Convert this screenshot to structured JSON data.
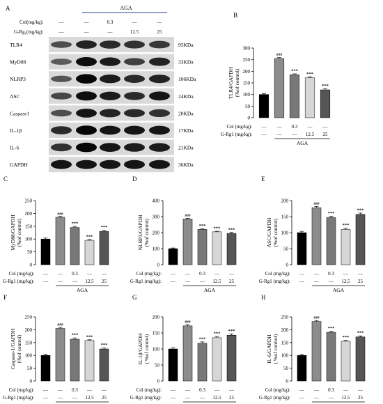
{
  "panel_a": {
    "label": "A",
    "group_label": "AGA",
    "row_labels": [
      "Col(mg/kg):",
      "G-Rg₁(mg/kg):"
    ],
    "col_row": [
      "—",
      "—",
      "0.3",
      "—",
      "—"
    ],
    "rg_row": [
      "—",
      "—",
      "—",
      "12.5",
      "25"
    ],
    "blots": [
      {
        "name": "TLR4",
        "kda": "95KDa"
      },
      {
        "name": "MyD88",
        "kda": "33KDa"
      },
      {
        "name": "NLRP3",
        "kda": "106KDa"
      },
      {
        "name": "ASC",
        "kda": "24KDa"
      },
      {
        "name": "Caspase1",
        "kda": "20KDa"
      },
      {
        "name": "IL-1β",
        "kda": "17KDa"
      },
      {
        "name": "IL-6",
        "kda": "21KDa"
      },
      {
        "name": "GAPDH",
        "kda": "36KDa"
      }
    ]
  },
  "chart_data": [
    {
      "type": "bar",
      "panel": "B",
      "ylabel": [
        "TLR4/GAPDH",
        "(%of control)"
      ],
      "ylim": [
        0,
        300
      ],
      "yticks": [
        0,
        50,
        100,
        150,
        200,
        250,
        300
      ],
      "values": [
        100,
        255,
        185,
        172,
        120
      ],
      "errors": [
        4,
        4,
        4,
        4,
        4
      ],
      "annotations": [
        "",
        "###",
        "***",
        "***",
        "***"
      ],
      "colors": [
        "#000000",
        "#8c8c8c",
        "#787878",
        "#d6d6d6",
        "#555555"
      ],
      "treatment_labels": [
        "Col (mg/kg):",
        "G-Rg1 (mg/kg):"
      ],
      "col_row": [
        "—",
        "—",
        "0.3",
        "—",
        "—"
      ],
      "rg_row": [
        "—",
        "—",
        "—",
        "12.5",
        "25"
      ],
      "group_label": "AGA"
    },
    {
      "type": "bar",
      "panel": "C",
      "ylabel": [
        "MyD88/GAPDH",
        "(%of control)"
      ],
      "ylim": [
        0,
        250
      ],
      "yticks": [
        0,
        50,
        100,
        150,
        200,
        250
      ],
      "values": [
        100,
        185,
        145,
        95,
        130
      ],
      "errors": [
        4,
        3,
        4,
        3,
        4
      ],
      "annotations": [
        "",
        "###",
        "***",
        "***",
        "***"
      ],
      "colors": [
        "#000000",
        "#8c8c8c",
        "#787878",
        "#d6d6d6",
        "#555555"
      ],
      "treatment_labels": [
        "Col (mg/kg):",
        "G-Rg1 (mg/kg):"
      ],
      "col_row": [
        "—",
        "—",
        "0.3",
        "—",
        "—"
      ],
      "rg_row": [
        "—",
        "—",
        "—",
        "12.5",
        "25"
      ],
      "group_label": "AGA"
    },
    {
      "type": "bar",
      "panel": "D",
      "ylabel": [
        "NLRP3/GAPDH",
        "(%of control)"
      ],
      "ylim": [
        0,
        400
      ],
      "yticks": [
        0,
        100,
        200,
        300,
        400
      ],
      "values": [
        100,
        285,
        220,
        205,
        195
      ],
      "errors": [
        4,
        4,
        4,
        4,
        6
      ],
      "annotations": [
        "",
        "###",
        "***",
        "***",
        "***"
      ],
      "colors": [
        "#000000",
        "#8c8c8c",
        "#787878",
        "#d6d6d6",
        "#555555"
      ],
      "treatment_labels": [
        "Col (mg/kg):",
        "G-Rg1 (mg/kg):"
      ],
      "col_row": [
        "—",
        "—",
        "0.3",
        "—",
        "—"
      ],
      "rg_row": [
        "—",
        "—",
        "—",
        "12.5",
        "25"
      ],
      "group_label": "AGA"
    },
    {
      "type": "bar",
      "panel": "E",
      "ylabel": [
        "ASC/GAPDH",
        "(%of control)"
      ],
      "ylim": [
        0,
        200
      ],
      "yticks": [
        0,
        50,
        100,
        150,
        200
      ],
      "values": [
        100,
        178,
        147,
        110,
        157
      ],
      "errors": [
        4,
        4,
        4,
        4,
        4
      ],
      "annotations": [
        "",
        "###",
        "***",
        "***",
        "***"
      ],
      "colors": [
        "#000000",
        "#8c8c8c",
        "#787878",
        "#d6d6d6",
        "#555555"
      ],
      "treatment_labels": [
        "Col (mg/kg):",
        "G-Rg1 (mg/kg):"
      ],
      "col_row": [
        "—",
        "—",
        "0.3",
        "—",
        "—"
      ],
      "rg_row": [
        "—",
        "—",
        "—",
        "12.5",
        "25"
      ],
      "group_label": "AGA"
    },
    {
      "type": "bar",
      "panel": "F",
      "ylabel": [
        "Caspase-1/GAPDH",
        "(%of control)"
      ],
      "ylim": [
        0,
        250
      ],
      "yticks": [
        0,
        50,
        100,
        150,
        200,
        250
      ],
      "values": [
        100,
        205,
        163,
        158,
        125
      ],
      "errors": [
        4,
        4,
        5,
        3,
        4
      ],
      "annotations": [
        "",
        "###",
        "***",
        "***",
        "***"
      ],
      "colors": [
        "#000000",
        "#8c8c8c",
        "#787878",
        "#d6d6d6",
        "#555555"
      ],
      "treatment_labels": [
        "Col (mg/kg):",
        "G-Rg1 (mg/kg):"
      ],
      "col_row": [
        "—",
        "—",
        "0.3",
        "—",
        "—"
      ],
      "rg_row": [
        "—",
        "—",
        "—",
        "12.5",
        "25"
      ],
      "group_label": "AGA"
    },
    {
      "type": "bar",
      "panel": "G",
      "ylabel": [
        "IL-1β/GAPDH",
        "( %of control)"
      ],
      "ylim": [
        0,
        200
      ],
      "yticks": [
        0,
        50,
        100,
        150,
        200
      ],
      "values": [
        100,
        172,
        118,
        135,
        143
      ],
      "errors": [
        4,
        4,
        4,
        4,
        4
      ],
      "annotations": [
        "",
        "###",
        "***",
        "***",
        "***"
      ],
      "colors": [
        "#000000",
        "#8c8c8c",
        "#787878",
        "#d6d6d6",
        "#555555"
      ],
      "treatment_labels": [
        "Col (mg/kg):",
        "G-Rg1 (mg/kg):"
      ],
      "col_row": [
        "—",
        "—",
        "0.3",
        "—",
        "—"
      ],
      "rg_row": [
        "—",
        "—",
        "—",
        "12.5",
        "25"
      ],
      "group_label": "AGA"
    },
    {
      "type": "bar",
      "panel": "H",
      "ylabel": [
        "IL-6/GAPDH",
        "( %of control)"
      ],
      "ylim": [
        0,
        250
      ],
      "yticks": [
        0,
        50,
        100,
        150,
        200,
        250
      ],
      "values": [
        100,
        232,
        190,
        155,
        172
      ],
      "errors": [
        4,
        4,
        4,
        4,
        4
      ],
      "annotations": [
        "",
        "###",
        "***",
        "***",
        "***"
      ],
      "colors": [
        "#000000",
        "#8c8c8c",
        "#787878",
        "#d6d6d6",
        "#555555"
      ],
      "treatment_labels": [
        "Col (mg/kg):",
        "G-Rg1 (mg/kg):"
      ],
      "col_row": [
        "—",
        "—",
        "0.3",
        "—",
        "—"
      ],
      "rg_row": [
        "—",
        "—",
        "—",
        "12.5",
        "25"
      ],
      "group_label": "AGA"
    }
  ]
}
